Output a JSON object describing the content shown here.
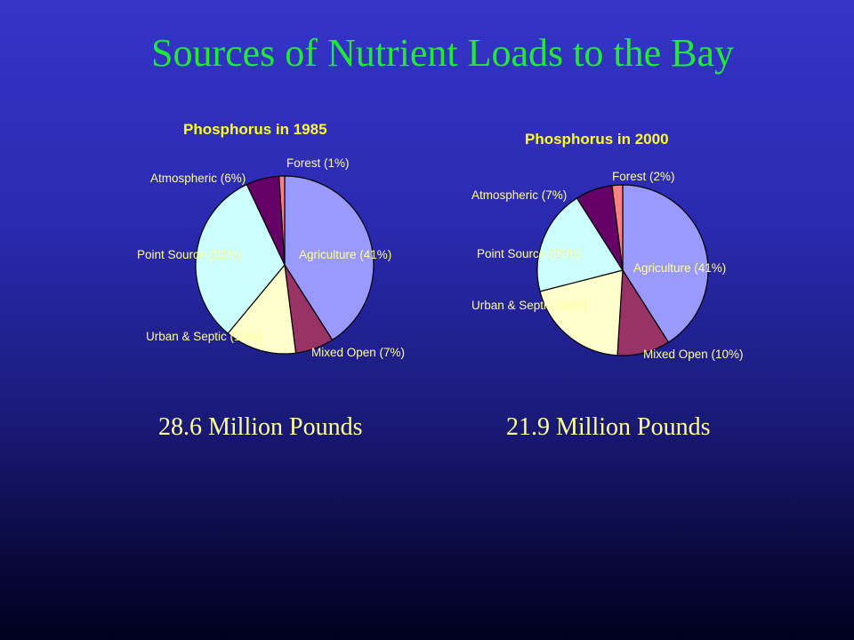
{
  "slide": {
    "title": "Sources of Nutrient Loads to the Bay"
  },
  "chart_data": [
    {
      "type": "pie",
      "title": "Phosphorus in 1985",
      "total_label": "28.6 Million Pounds",
      "slices": [
        {
          "name": "Agriculture",
          "value": 41,
          "label": "Agriculture (41%)",
          "color": "#9999ff"
        },
        {
          "name": "Mixed Open",
          "value": 7,
          "label": "Mixed Open (7%)",
          "color": "#993366"
        },
        {
          "name": "Urban & Septic",
          "value": 13,
          "label": "Urban & Septic (13%)",
          "color": "#ffffcc"
        },
        {
          "name": "Point Source",
          "value": 32,
          "label": "Point Source (32%)",
          "color": "#ccffff"
        },
        {
          "name": "Atmospheric",
          "value": 6,
          "label": "Atmospheric (6%)",
          "color": "#660066"
        },
        {
          "name": "Forest",
          "value": 1,
          "label": "Forest (1%)",
          "color": "#ff8080"
        }
      ]
    },
    {
      "type": "pie",
      "title": "Phosphorus in 2000",
      "total_label": "21.9 Million Pounds",
      "slices": [
        {
          "name": "Agriculture",
          "value": 41,
          "label": "Agriculture (41%)",
          "color": "#9999ff"
        },
        {
          "name": "Mixed Open",
          "value": 10,
          "label": "Mixed Open (10%)",
          "color": "#993366"
        },
        {
          "name": "Urban & Septic",
          "value": 20,
          "label": "Urban & Septic (20%)",
          "color": "#ffffcc"
        },
        {
          "name": "Point Source",
          "value": 20,
          "label": "Point Source (20%)",
          "color": "#ccffff"
        },
        {
          "name": "Atmospheric",
          "value": 7,
          "label": "Atmospheric (7%)",
          "color": "#660066"
        },
        {
          "name": "Forest",
          "value": 2,
          "label": "Forest (2%)",
          "color": "#ff8080"
        }
      ]
    }
  ]
}
